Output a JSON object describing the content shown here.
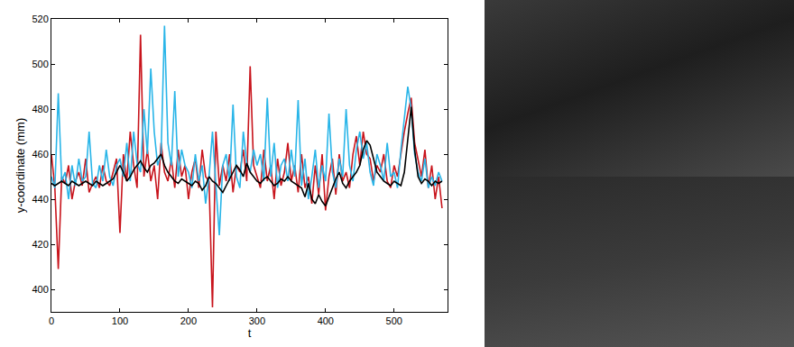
{
  "chart_data": {
    "type": "line",
    "x_label": "t",
    "y_label": "y-coordinate (mm)",
    "x": [
      0,
      5,
      10,
      15,
      20,
      25,
      30,
      35,
      40,
      45,
      50,
      55,
      60,
      65,
      70,
      75,
      80,
      85,
      90,
      95,
      100,
      105,
      110,
      115,
      120,
      125,
      130,
      135,
      140,
      145,
      150,
      155,
      160,
      165,
      170,
      175,
      180,
      185,
      190,
      195,
      200,
      205,
      210,
      215,
      220,
      225,
      230,
      235,
      240,
      245,
      250,
      255,
      260,
      265,
      270,
      275,
      280,
      285,
      290,
      295,
      300,
      305,
      310,
      315,
      320,
      325,
      330,
      335,
      340,
      345,
      350,
      355,
      360,
      365,
      370,
      375,
      380,
      385,
      390,
      395,
      400,
      405,
      410,
      415,
      420,
      425,
      430,
      435,
      440,
      445,
      450,
      455,
      460,
      465,
      470,
      475,
      480,
      485,
      490,
      495,
      500,
      505,
      510,
      515,
      520,
      525,
      530,
      535,
      540,
      545,
      550,
      555,
      560,
      565,
      570
    ],
    "series": [
      {
        "color": "#c8141c",
        "values": [
          460,
          445,
          409,
          450,
          447,
          455,
          440,
          448,
          452,
          446,
          458,
          443,
          447,
          450,
          445,
          455,
          448,
          446,
          452,
          458,
          425,
          460,
          448,
          470,
          455,
          445,
          513,
          450,
          462,
          448,
          455,
          440,
          465,
          452,
          448,
          458,
          445,
          462,
          450,
          455,
          440,
          452,
          458,
          445,
          462,
          450,
          448,
          392,
          470,
          446,
          455,
          448,
          460,
          443,
          455,
          452,
          462,
          448,
          499,
          455,
          450,
          445,
          462,
          448,
          455,
          440,
          458,
          446,
          452,
          465,
          448,
          455,
          443,
          460,
          445,
          450,
          438,
          455,
          442,
          460,
          435,
          450,
          458,
          442,
          460,
          448,
          452,
          445,
          460,
          468,
          455,
          470,
          460,
          458,
          448,
          455,
          452,
          460,
          448,
          445,
          455,
          450,
          460,
          470,
          478,
          485,
          465,
          458,
          450,
          462,
          445,
          455,
          440,
          450,
          436
        ]
      },
      {
        "color": "#29b5e8",
        "values": [
          450,
          445,
          487,
          448,
          452,
          440,
          455,
          446,
          458,
          448,
          450,
          470,
          447,
          445,
          455,
          448,
          462,
          450,
          446,
          455,
          458,
          450,
          465,
          448,
          470,
          456,
          452,
          480,
          460,
          498,
          470,
          455,
          460,
          517,
          465,
          455,
          488,
          450,
          462,
          455,
          452,
          445,
          460,
          448,
          455,
          438,
          450,
          470,
          446,
          424,
          455,
          460,
          448,
          482,
          450,
          445,
          470,
          456,
          452,
          462,
          455,
          460,
          448,
          485,
          450,
          465,
          445,
          455,
          458,
          448,
          462,
          450,
          484,
          446,
          458,
          440,
          450,
          462,
          445,
          455,
          448,
          478,
          452,
          445,
          458,
          450,
          480,
          455,
          448,
          462,
          470,
          458,
          465,
          452,
          446,
          460,
          455,
          448,
          465,
          450,
          452,
          445,
          462,
          475,
          490,
          480,
          460,
          452,
          448,
          458,
          445,
          450,
          446,
          452,
          448
        ]
      },
      {
        "color": "#000000",
        "values": [
          447,
          446,
          447,
          448,
          447,
          446,
          448,
          447,
          446,
          447,
          448,
          447,
          446,
          448,
          447,
          446,
          447,
          448,
          449,
          452,
          455,
          452,
          448,
          450,
          453,
          455,
          457,
          454,
          452,
          455,
          456,
          458,
          460,
          455,
          452,
          450,
          448,
          447,
          449,
          448,
          447,
          446,
          448,
          447,
          444,
          446,
          450,
          448,
          447,
          445,
          443,
          446,
          449,
          452,
          455,
          453,
          450,
          456,
          452,
          450,
          448,
          447,
          449,
          450,
          448,
          446,
          447,
          449,
          448,
          450,
          448,
          447,
          446,
          445,
          441,
          447,
          440,
          438,
          442,
          439,
          437,
          441,
          445,
          449,
          452,
          447,
          445,
          448,
          450,
          452,
          455,
          462,
          466,
          464,
          458,
          452,
          450,
          448,
          447,
          446,
          448,
          447,
          446,
          452,
          468,
          481,
          462,
          450,
          447,
          449,
          448,
          446,
          448,
          447,
          448
        ]
      }
    ],
    "xlim": [
      0,
      578
    ],
    "ylim": [
      390,
      520
    ],
    "xticks": [
      0,
      100,
      200,
      300,
      400,
      500
    ],
    "yticks": [
      400,
      420,
      440,
      460,
      480,
      500,
      520
    ],
    "grid": false
  }
}
